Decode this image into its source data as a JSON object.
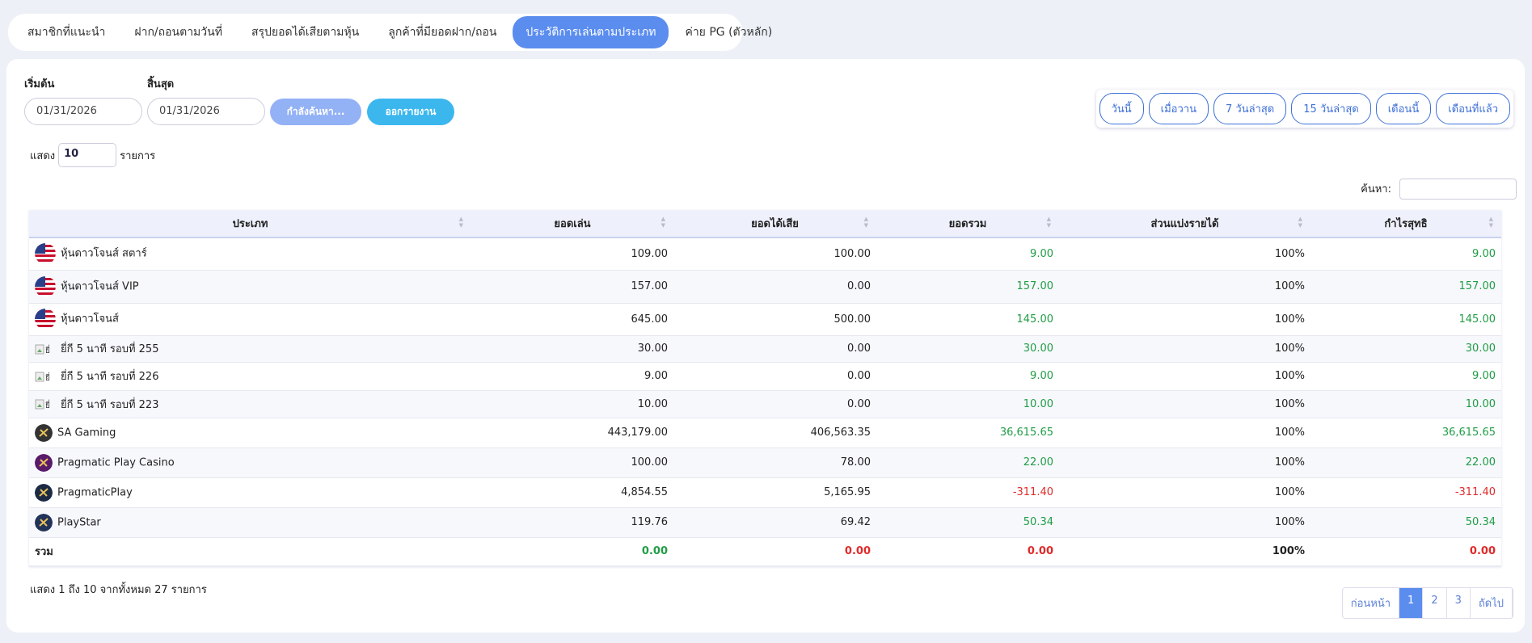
{
  "tabs": [
    "สมาชิกที่แนะนำ",
    "ฝาก/ถอนตามวันที่",
    "สรุปยอดได้เสียตามหุ้น",
    "ลูกค้าที่มียอดฝาก/ถอน",
    "ประวัติการเล่นตามประเภท",
    "ค่าย PG (ตัวหลัก)"
  ],
  "filters": {
    "start_label": "เริ่มต้น",
    "end_label": "สิ้นสุด",
    "start_date": "01/31/2026",
    "end_date": "01/31/2026",
    "search_button": "กำลังค้นหา...",
    "export_button": "ออกรายงาน"
  },
  "quick_ranges": [
    "วันนี้",
    "เมื่อวาน",
    "7 วันล่าสุด",
    "15 วันล่าสุด",
    "เดือนนี้",
    "เดือนที่แล้ว"
  ],
  "length": {
    "prefix": "แสดง",
    "value": "10",
    "suffix": "รายการ"
  },
  "search_label": "ค้นหา:",
  "table": {
    "columns": [
      "ประเภท",
      "ยอดเล่น",
      "ยอดได้เสีย",
      "ยอดรวม",
      "ส่วนแบ่งรายได้",
      "กำไรสุทธิ"
    ],
    "rows": [
      [
        "หุ้นดาวโจนส์ สตาร์",
        "109.00",
        "100.00",
        "9.00",
        "100%",
        "9.00"
      ],
      [
        "หุ้นดาวโจนส์ VIP",
        "157.00",
        "0.00",
        "157.00",
        "100%",
        "157.00"
      ],
      [
        "หุ้นดาวโจนส์",
        "645.00",
        "500.00",
        "145.00",
        "100%",
        "145.00"
      ],
      [
        "ยี่กี 5 นาที รอบที่ 255",
        "30.00",
        "0.00",
        "30.00",
        "100%",
        "30.00"
      ],
      [
        "ยี่กี 5 นาที รอบที่ 226",
        "9.00",
        "0.00",
        "9.00",
        "100%",
        "9.00"
      ],
      [
        "ยี่กี 5 นาที รอบที่ 223",
        "10.00",
        "0.00",
        "10.00",
        "100%",
        "10.00"
      ],
      [
        "SA Gaming",
        "443,179.00",
        "406,563.35",
        "36,615.65",
        "100%",
        "36,615.65"
      ],
      [
        "Pragmatic Play Casino",
        "100.00",
        "78.00",
        "22.00",
        "100%",
        "22.00"
      ],
      [
        "PragmaticPlay",
        "4,854.55",
        "5,165.95",
        "-311.40",
        "100%",
        "-311.40"
      ],
      [
        "PlayStar",
        "119.76",
        "69.42",
        "50.34",
        "100%",
        "50.34"
      ]
    ],
    "total": [
      "รวม",
      "0.00",
      "0.00",
      "0.00",
      "100%",
      "0.00"
    ]
  },
  "info": "แสดง 1 ถึง 10 จากทั้งหมด 27 รายการ",
  "pagination": [
    "ก่อนหน้า",
    "1",
    "2",
    "3",
    "ถัดไป"
  ]
}
